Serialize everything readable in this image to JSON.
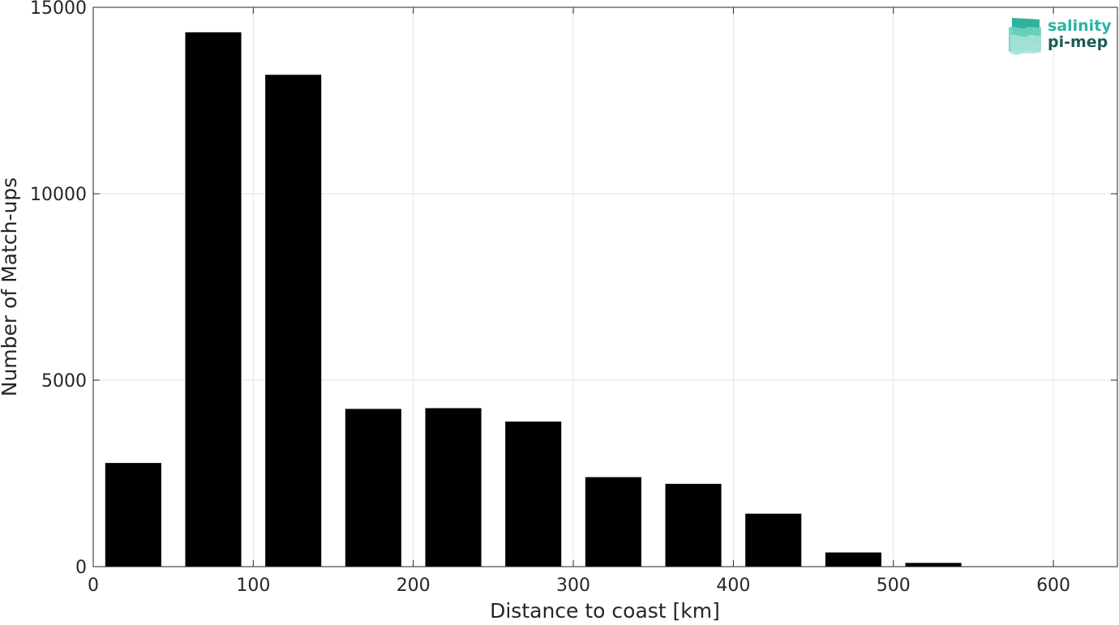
{
  "chart_data": {
    "type": "bar",
    "title": "",
    "xlabel": "Distance to coast [km]",
    "ylabel": "Number of Match-ups",
    "xlim": [
      0,
      640
    ],
    "ylim": [
      0,
      15000
    ],
    "grid": true,
    "x_ticks": [
      0,
      100,
      200,
      300,
      400,
      500,
      600
    ],
    "y_ticks": [
      0,
      5000,
      10000,
      15000
    ],
    "bar_width": 35,
    "x": [
      25,
      75,
      125,
      175,
      225,
      275,
      325,
      375,
      425,
      475,
      525
    ],
    "values": [
      2780,
      14330,
      13190,
      4230,
      4250,
      3890,
      2400,
      2220,
      1420,
      380,
      100
    ],
    "bar_color": "#000000"
  },
  "logo": {
    "line1": "salinity",
    "line2": "pi-mep",
    "color1": "#2ab3a0",
    "color2": "#1a5c57"
  }
}
